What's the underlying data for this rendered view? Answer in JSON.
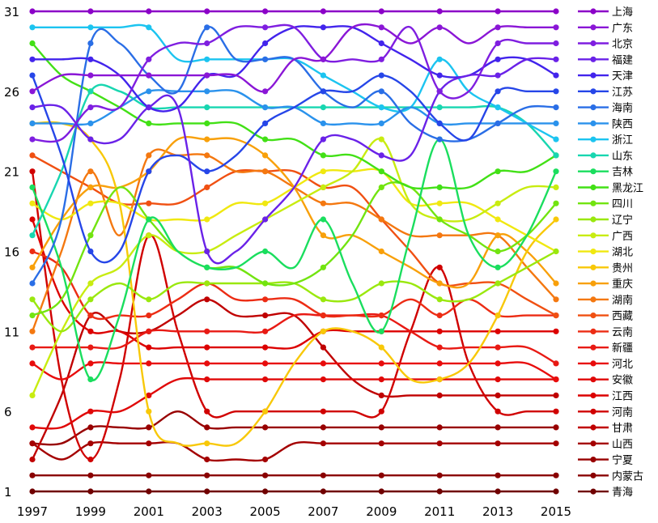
{
  "chart_data": {
    "type": "line",
    "title": "",
    "xlabel": "",
    "ylabel": "",
    "x": [
      1997,
      1998,
      1999,
      2000,
      2001,
      2002,
      2003,
      2004,
      2005,
      2006,
      2007,
      2008,
      2009,
      2010,
      2011,
      2012,
      2013,
      2014,
      2015
    ],
    "xticks": [
      "1997",
      "1999",
      "2001",
      "2003",
      "2005",
      "2007",
      "2009",
      "2011",
      "2013",
      "2015"
    ],
    "yticks": [
      "1",
      "6",
      "11",
      "16",
      "21",
      "26",
      "31"
    ],
    "ylim": [
      1,
      31
    ],
    "grid": false,
    "legend_position": "right",
    "series": [
      {
        "name": "上海",
        "color": "#8b00c8",
        "values": [
          31,
          31,
          31,
          31,
          31,
          31,
          31,
          31,
          31,
          31,
          31,
          31,
          31,
          31,
          31,
          31,
          31,
          31,
          31
        ]
      },
      {
        "name": "广东",
        "color": "#8a16d6",
        "values": [
          26,
          27,
          27,
          27,
          27,
          27,
          27,
          27,
          26,
          28,
          28,
          30,
          30,
          29,
          30,
          29,
          30,
          30,
          30
        ]
      },
      {
        "name": "北京",
        "color": "#7f1ee0",
        "values": [
          23,
          23,
          25,
          25,
          28,
          29,
          29,
          30,
          30,
          30,
          28,
          28,
          28,
          30,
          26,
          26,
          29,
          29,
          29
        ]
      },
      {
        "name": "福建",
        "color": "#6a22e8",
        "values": [
          25,
          25,
          23,
          23,
          25,
          25,
          16,
          16,
          18,
          20,
          23,
          23,
          22,
          22,
          26,
          27,
          27,
          28,
          28
        ]
      },
      {
        "name": "天津",
        "color": "#4224ec",
        "values": [
          28,
          28,
          28,
          27,
          25,
          25,
          27,
          27,
          29,
          30,
          30,
          30,
          29,
          28,
          27,
          27,
          28,
          28,
          27
        ]
      },
      {
        "name": "江苏",
        "color": "#2646e8",
        "values": [
          27,
          22,
          16,
          16,
          21,
          22,
          21,
          22,
          24,
          25,
          26,
          26,
          27,
          26,
          24,
          23,
          26,
          26,
          26
        ]
      },
      {
        "name": "海南",
        "color": "#2a6ee6",
        "values": [
          14,
          18,
          29,
          29,
          27,
          26,
          30,
          28,
          28,
          28,
          26,
          25,
          26,
          24,
          23,
          23,
          24,
          25,
          25
        ]
      },
      {
        "name": "陕西",
        "color": "#2a92ec",
        "values": [
          24,
          24,
          24,
          25,
          26,
          26,
          26,
          26,
          25,
          25,
          24,
          24,
          24,
          25,
          24,
          24,
          24,
          24,
          24
        ]
      },
      {
        "name": "浙江",
        "color": "#1cc4f0",
        "values": [
          30,
          30,
          30,
          30,
          30,
          28,
          28,
          28,
          28,
          28,
          27,
          26,
          25,
          25,
          28,
          26,
          25,
          24,
          23
        ]
      },
      {
        "name": "山东",
        "color": "#18d6b0",
        "values": [
          17,
          21,
          26,
          26,
          25,
          25,
          25,
          25,
          25,
          25,
          25,
          25,
          25,
          25,
          25,
          25,
          25,
          24,
          22
        ]
      },
      {
        "name": "吉林",
        "color": "#1ade5e",
        "values": [
          20,
          15,
          8,
          12,
          18,
          16,
          15,
          15,
          16,
          15,
          18,
          14,
          11,
          17,
          23,
          17,
          15,
          17,
          21
        ]
      },
      {
        "name": "黑龙江",
        "color": "#42e016",
        "values": [
          29,
          27,
          26,
          25,
          24,
          24,
          24,
          24,
          23,
          23,
          22,
          22,
          21,
          20,
          20,
          20,
          21,
          21,
          22
        ]
      },
      {
        "name": "四川",
        "color": "#72e410",
        "values": [
          12,
          13,
          17,
          20,
          18,
          16,
          15,
          15,
          14,
          14,
          15,
          17,
          20,
          20,
          18,
          17,
          16,
          17,
          19
        ]
      },
      {
        "name": "辽宁",
        "color": "#9ae80e",
        "values": [
          13,
          11,
          13,
          14,
          13,
          14,
          14,
          14,
          14,
          14,
          13,
          13,
          14,
          14,
          13,
          13,
          14,
          15,
          16
        ]
      },
      {
        "name": "广西",
        "color": "#c8ec10",
        "values": [
          7,
          11,
          14,
          15,
          17,
          16,
          16,
          17,
          18,
          19,
          20,
          21,
          23,
          19,
          18,
          18,
          19,
          20,
          20
        ]
      },
      {
        "name": "湖北",
        "color": "#f0e810",
        "values": [
          19,
          18,
          19,
          19,
          18,
          18,
          18,
          19,
          19,
          20,
          21,
          21,
          21,
          19,
          19,
          19,
          18,
          17,
          16
        ]
      },
      {
        "name": "贵州",
        "color": "#f8c808",
        "values": [
          24,
          24,
          23,
          19,
          6,
          4,
          4,
          4,
          6,
          9,
          11,
          11,
          10,
          8,
          8,
          9,
          12,
          16,
          18
        ]
      },
      {
        "name": "重庆",
        "color": "#f8a00a",
        "values": [
          15,
          18,
          20,
          20,
          21,
          23,
          23,
          23,
          22,
          20,
          17,
          17,
          16,
          15,
          14,
          14,
          17,
          16,
          14
        ]
      },
      {
        "name": "湖南",
        "color": "#f47810",
        "values": [
          11,
          16,
          21,
          17,
          22,
          22,
          22,
          21,
          21,
          20,
          19,
          19,
          18,
          17,
          17,
          17,
          17,
          15,
          13
        ]
      },
      {
        "name": "西藏",
        "color": "#f05012",
        "values": [
          22,
          21,
          20,
          19,
          19,
          19,
          20,
          21,
          21,
          21,
          20,
          20,
          18,
          16,
          14,
          14,
          14,
          13,
          12
        ]
      },
      {
        "name": "云南",
        "color": "#ec2c14",
        "values": [
          16,
          15,
          12,
          12,
          12,
          13,
          14,
          13,
          13,
          13,
          12,
          12,
          12,
          13,
          12,
          13,
          12,
          12,
          12
        ]
      },
      {
        "name": "新疆",
        "color": "#e81a14",
        "values": [
          10,
          10,
          10,
          10,
          11,
          11,
          11,
          11,
          11,
          12,
          12,
          12,
          12,
          11,
          10,
          10,
          10,
          10,
          9
        ]
      },
      {
        "name": "河北",
        "color": "#e80c0c",
        "values": [
          9,
          8,
          9,
          9,
          9,
          9,
          9,
          9,
          9,
          9,
          9,
          9,
          9,
          9,
          9,
          9,
          9,
          9,
          8
        ]
      },
      {
        "name": "安徽",
        "color": "#e00808",
        "values": [
          5,
          5,
          6,
          6,
          7,
          8,
          8,
          8,
          8,
          8,
          8,
          8,
          8,
          8,
          8,
          8,
          8,
          8,
          8
        ]
      },
      {
        "name": "江西",
        "color": "#dc0000",
        "values": [
          18,
          13,
          11,
          11,
          10,
          10,
          10,
          10,
          10,
          10,
          11,
          11,
          11,
          11,
          11,
          11,
          11,
          11,
          11
        ]
      },
      {
        "name": "河南",
        "color": "#d00000",
        "values": [
          21,
          8,
          3,
          8,
          17,
          11,
          6,
          6,
          6,
          6,
          6,
          6,
          6,
          11,
          15,
          9,
          6,
          6,
          6
        ]
      },
      {
        "name": "甘肃",
        "color": "#c00000",
        "values": [
          3,
          7,
          12,
          11,
          11,
          12,
          13,
          12,
          12,
          12,
          10,
          8,
          7,
          7,
          7,
          7,
          7,
          7,
          7
        ]
      },
      {
        "name": "山西",
        "color": "#a40000",
        "values": [
          4,
          3,
          4,
          4,
          4,
          4,
          3,
          3,
          3,
          4,
          4,
          4,
          4,
          4,
          4,
          4,
          4,
          4,
          4
        ]
      },
      {
        "name": "宁夏",
        "color": "#980000",
        "values": [
          4,
          4,
          5,
          5,
          5,
          6,
          5,
          5,
          5,
          5,
          5,
          5,
          5,
          5,
          5,
          5,
          5,
          5,
          5
        ]
      },
      {
        "name": "内蒙古",
        "color": "#8a0000",
        "values": [
          2,
          2,
          2,
          2,
          2,
          2,
          2,
          2,
          2,
          2,
          2,
          2,
          2,
          2,
          2,
          2,
          2,
          2,
          2
        ]
      },
      {
        "name": "青海",
        "color": "#700000",
        "values": [
          1,
          1,
          1,
          1,
          1,
          1,
          1,
          1,
          1,
          1,
          1,
          1,
          1,
          1,
          1,
          1,
          1,
          1,
          1
        ]
      }
    ]
  }
}
